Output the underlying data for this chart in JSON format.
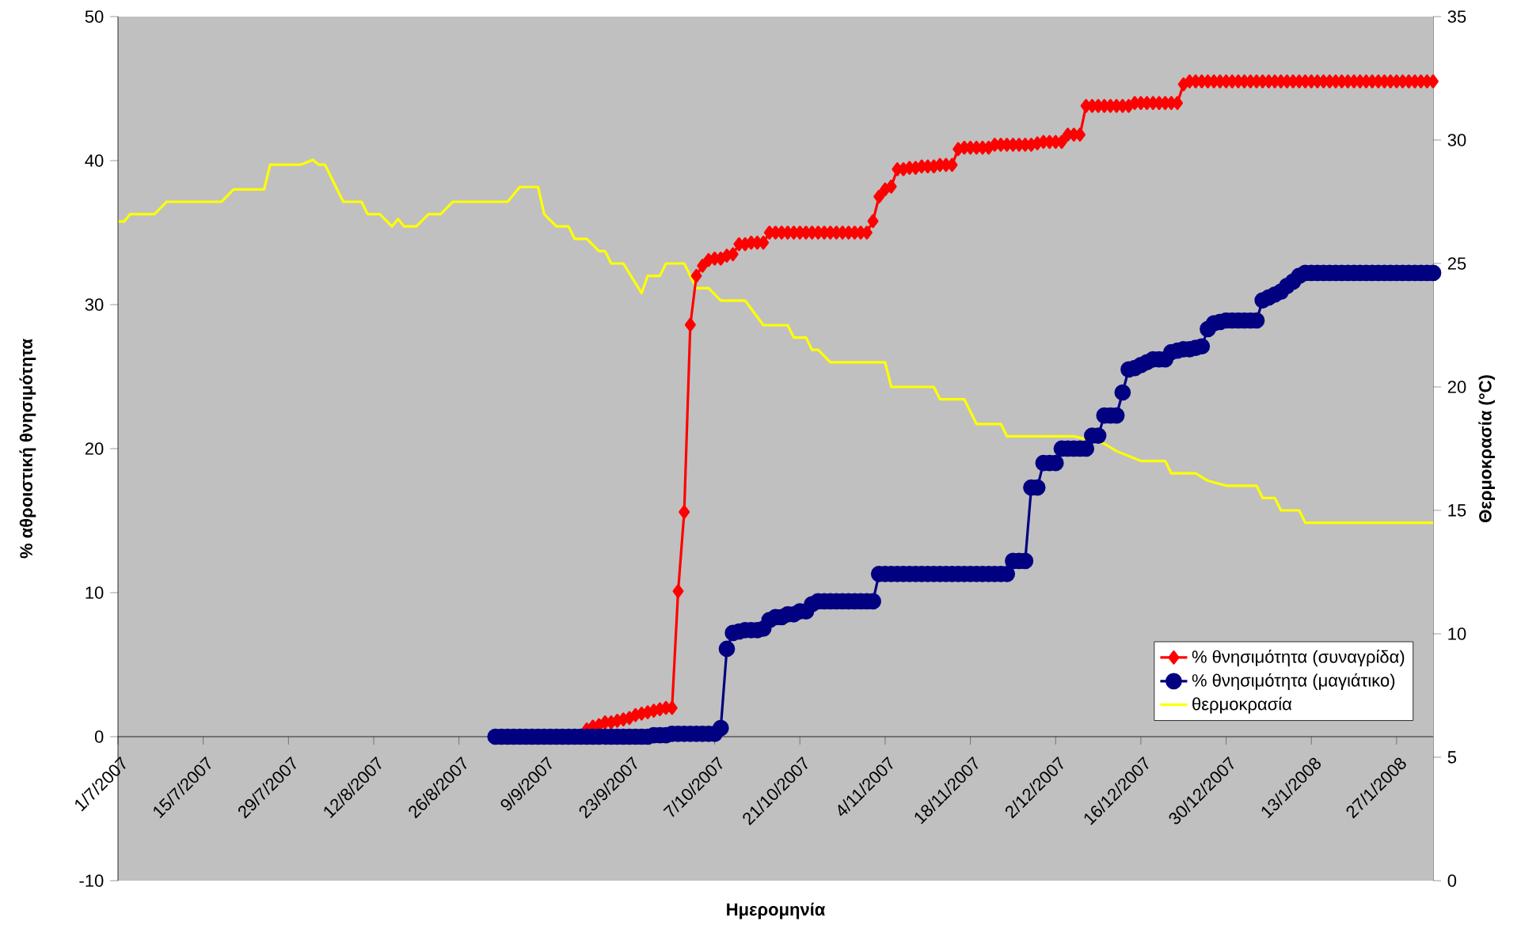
{
  "chart_data": {
    "type": "line",
    "xlabel": "Ημερομηνία",
    "ylabel": "% αθροιστική θνησιμότητα",
    "y2label": "Θερμοκρασία (°C)",
    "x": [
      "2007-09-01",
      "2007-09-02",
      "2007-09-03",
      "2007-09-04",
      "2007-09-05",
      "2007-09-06",
      "2007-09-07",
      "2007-09-08",
      "2007-09-09",
      "2007-09-10",
      "2007-09-11",
      "2007-09-12",
      "2007-09-13",
      "2007-09-14",
      "2007-09-15",
      "2007-09-16",
      "2007-09-17",
      "2007-09-18",
      "2007-09-19",
      "2007-09-20",
      "2007-09-21",
      "2007-09-22",
      "2007-09-23",
      "2007-09-24",
      "2007-09-25",
      "2007-09-26",
      "2007-09-27",
      "2007-09-28",
      "2007-09-29",
      "2007-09-30",
      "2007-10-01",
      "2007-10-02",
      "2007-10-03",
      "2007-10-04",
      "2007-10-05",
      "2007-10-06",
      "2007-10-07",
      "2007-10-08",
      "2007-10-09",
      "2007-10-10",
      "2007-10-11",
      "2007-10-12",
      "2007-10-13",
      "2007-10-14",
      "2007-10-15",
      "2007-10-16",
      "2007-10-17",
      "2007-10-18",
      "2007-10-19",
      "2007-10-20",
      "2007-10-21",
      "2007-10-22",
      "2007-10-23",
      "2007-10-24",
      "2007-10-25",
      "2007-10-26",
      "2007-10-27",
      "2007-10-28",
      "2007-10-29",
      "2007-10-30",
      "2007-10-31",
      "2007-11-01",
      "2007-11-02",
      "2007-11-03",
      "2007-11-04",
      "2007-11-05",
      "2007-11-06",
      "2007-11-07",
      "2007-11-08",
      "2007-11-09",
      "2007-11-10",
      "2007-11-11",
      "2007-11-12",
      "2007-11-13",
      "2007-11-14",
      "2007-11-15",
      "2007-11-16",
      "2007-11-17",
      "2007-11-18",
      "2007-11-19",
      "2007-11-20",
      "2007-11-21",
      "2007-11-22",
      "2007-11-23",
      "2007-11-24",
      "2007-11-25",
      "2007-11-26",
      "2007-11-27",
      "2007-11-28",
      "2007-11-29",
      "2007-11-30",
      "2007-12-01",
      "2007-12-02",
      "2007-12-03",
      "2007-12-04",
      "2007-12-05",
      "2007-12-06",
      "2007-12-07",
      "2007-12-08",
      "2007-12-09",
      "2007-12-10",
      "2007-12-11",
      "2007-12-12",
      "2007-12-13",
      "2007-12-14",
      "2007-12-15",
      "2007-12-16",
      "2007-12-17",
      "2007-12-18",
      "2007-12-19",
      "2007-12-20",
      "2007-12-21",
      "2007-12-22",
      "2007-12-23",
      "2007-12-24",
      "2007-12-25",
      "2007-12-26",
      "2007-12-27",
      "2007-12-28",
      "2007-12-29",
      "2007-12-30",
      "2007-12-31",
      "2008-01-01",
      "2008-01-02",
      "2008-01-03",
      "2008-01-04",
      "2008-01-05",
      "2008-01-06",
      "2008-01-07",
      "2008-01-08",
      "2008-01-09",
      "2008-01-10",
      "2008-01-11",
      "2008-01-12",
      "2008-01-13",
      "2008-01-14",
      "2008-01-15",
      "2008-01-16",
      "2008-01-17",
      "2008-01-18",
      "2008-01-19",
      "2008-01-20",
      "2008-01-21",
      "2008-01-22",
      "2008-01-23",
      "2008-01-24",
      "2008-01-25",
      "2008-01-26",
      "2008-01-27",
      "2008-01-28",
      "2008-01-29",
      "2008-01-30",
      "2008-01-31",
      "2008-02-01",
      "2008-02-02"
    ],
    "series": [
      {
        "name": "% θνησιμότητα (συναγρίδα)",
        "color": "#ff0000",
        "marker": "diamond",
        "values": [
          null,
          null,
          null,
          null,
          null,
          null,
          null,
          null,
          null,
          null,
          null,
          null,
          null,
          null,
          null,
          0.5,
          0.7,
          0.8,
          1.0,
          1.0,
          1.1,
          1.2,
          1.3,
          1.5,
          1.6,
          1.7,
          1.8,
          1.9,
          2.0,
          2.0,
          10.1,
          15.6,
          28.6,
          32.0,
          32.7,
          33.1,
          33.2,
          33.2,
          33.4,
          33.5,
          34.2,
          34.2,
          34.3,
          34.3,
          34.3,
          35.0,
          35.0,
          35.0,
          35.0,
          35.0,
          35.0,
          35.0,
          35.0,
          35.0,
          35.0,
          35.0,
          35.0,
          35.0,
          35.0,
          35.0,
          35.0,
          35.0,
          35.8,
          37.5,
          38.0,
          38.2,
          39.4,
          39.4,
          39.5,
          39.5,
          39.6,
          39.6,
          39.6,
          39.7,
          39.7,
          39.7,
          40.8,
          40.9,
          40.9,
          40.9,
          40.9,
          40.9,
          41.1,
          41.1,
          41.1,
          41.1,
          41.1,
          41.1,
          41.1,
          41.2,
          41.3,
          41.3,
          41.3,
          41.3,
          41.8,
          41.8,
          41.8,
          43.8,
          43.8,
          43.8,
          43.8,
          43.8,
          43.8,
          43.8,
          43.8,
          44.0,
          44.0,
          44.0,
          44.0,
          44.0,
          44.0,
          44.0,
          44.0,
          45.3,
          45.5,
          45.5,
          45.5,
          45.5,
          45.5,
          45.5,
          45.5,
          45.5,
          45.5,
          45.5,
          45.5,
          45.5,
          45.5,
          45.5,
          45.5,
          45.5,
          45.5,
          45.5,
          45.5,
          45.5,
          45.5,
          45.5,
          45.5,
          45.5,
          45.5,
          45.5,
          45.5,
          45.5,
          45.5,
          45.5,
          45.5,
          45.5,
          45.5,
          45.5,
          45.5,
          45.5,
          45.5,
          45.5,
          45.5,
          45.5,
          45.5
        ]
      },
      {
        "name": "% θνησιμότητα (μαγιάτικο)",
        "color": "#000080",
        "marker": "circle",
        "values": [
          0,
          0,
          0,
          0,
          0,
          0,
          0,
          0,
          0,
          0,
          0,
          0,
          0,
          0,
          0,
          0,
          0,
          0,
          0,
          0,
          0,
          0,
          0,
          0,
          0,
          0,
          0.1,
          0.1,
          0.1,
          0.2,
          0.2,
          0.2,
          0.2,
          0.2,
          0.2,
          0.2,
          0.2,
          0.6,
          6.1,
          7.2,
          7.3,
          7.4,
          7.4,
          7.4,
          7.5,
          8.1,
          8.3,
          8.3,
          8.5,
          8.5,
          8.7,
          8.7,
          9.2,
          9.4,
          9.4,
          9.4,
          9.4,
          9.4,
          9.4,
          9.4,
          9.4,
          9.4,
          9.4,
          11.3,
          11.3,
          11.3,
          11.3,
          11.3,
          11.3,
          11.3,
          11.3,
          11.3,
          11.3,
          11.3,
          11.3,
          11.3,
          11.3,
          11.3,
          11.3,
          11.3,
          11.3,
          11.3,
          11.3,
          11.3,
          11.3,
          12.2,
          12.2,
          12.2,
          17.3,
          17.3,
          19.0,
          19.0,
          19.0,
          20.0,
          20.0,
          20.0,
          20.0,
          20.0,
          20.9,
          20.9,
          22.3,
          22.3,
          22.3,
          23.9,
          25.5,
          25.6,
          25.8,
          26.0,
          26.2,
          26.2,
          26.2,
          26.7,
          26.8,
          26.9,
          26.9,
          27.0,
          27.1,
          28.3,
          28.7,
          28.8,
          28.9,
          28.9,
          28.9,
          28.9,
          28.9,
          28.9,
          30.3,
          30.5,
          30.7,
          30.9,
          31.3,
          31.6,
          32.0,
          32.2,
          32.2,
          32.2,
          32.2,
          32.2,
          32.2,
          32.2,
          32.2,
          32.2,
          32.2,
          32.2,
          32.2,
          32.2,
          32.2,
          32.2,
          32.2,
          32.2,
          32.2,
          32.2,
          32.2,
          32.2,
          32.2
        ]
      },
      {
        "name": "θερμοκρασία",
        "color": "#ffff00",
        "marker": "none",
        "axis": "y2",
        "x": [
          "2007-07-01",
          "2007-07-02",
          "2007-07-03",
          "2007-07-07",
          "2007-07-09",
          "2007-07-18",
          "2007-07-20",
          "2007-07-25",
          "2007-07-26",
          "2007-07-31",
          "2007-08-02",
          "2007-08-03",
          "2007-08-04",
          "2007-08-07",
          "2007-08-10",
          "2007-08-11",
          "2007-08-13",
          "2007-08-15",
          "2007-08-16",
          "2007-08-17",
          "2007-08-19",
          "2007-08-21",
          "2007-08-23",
          "2007-08-25",
          "2007-09-03",
          "2007-09-05",
          "2007-09-08",
          "2007-09-09",
          "2007-09-11",
          "2007-09-13",
          "2007-09-14",
          "2007-09-16",
          "2007-09-18",
          "2007-09-19",
          "2007-09-20",
          "2007-09-22",
          "2007-09-25",
          "2007-09-26",
          "2007-09-28",
          "2007-09-29",
          "2007-10-02",
          "2007-10-04",
          "2007-10-06",
          "2007-10-08",
          "2007-10-12",
          "2007-10-15",
          "2007-10-19",
          "2007-10-20",
          "2007-10-22",
          "2007-10-23",
          "2007-10-24",
          "2007-10-26",
          "2007-11-04",
          "2007-11-05",
          "2007-11-12",
          "2007-11-13",
          "2007-11-17",
          "2007-11-18",
          "2007-11-19",
          "2007-11-23",
          "2007-11-24",
          "2007-12-05",
          "2007-12-10",
          "2007-12-12",
          "2007-12-16",
          "2007-12-20",
          "2007-12-21",
          "2007-12-25",
          "2007-12-27",
          "2007-12-30",
          "2008-01-04",
          "2008-01-05",
          "2008-01-07",
          "2008-01-08",
          "2008-01-11",
          "2008-01-12",
          "2008-02-02"
        ],
        "values": [
          26.7,
          26.7,
          27.0,
          27.0,
          27.5,
          27.5,
          28.0,
          28.0,
          29.0,
          29.0,
          29.2,
          29.0,
          29.0,
          27.5,
          27.5,
          27.0,
          27.0,
          26.5,
          26.8,
          26.5,
          26.5,
          27.0,
          27.0,
          27.5,
          27.5,
          28.1,
          28.1,
          27.0,
          26.5,
          26.5,
          26.0,
          26.0,
          25.5,
          25.5,
          25.0,
          25.0,
          23.8,
          24.5,
          24.5,
          25.0,
          25.0,
          24.0,
          24.0,
          23.5,
          23.5,
          22.5,
          22.5,
          22.0,
          22.0,
          21.5,
          21.5,
          21.0,
          21.0,
          20.0,
          20.0,
          19.5,
          19.5,
          19.0,
          18.5,
          18.5,
          18.0,
          18.0,
          17.7,
          17.4,
          17.0,
          17.0,
          16.5,
          16.5,
          16.2,
          16.0,
          16.0,
          15.5,
          15.5,
          15.0,
          15.0,
          14.5,
          14.5
        ]
      }
    ],
    "xlim": [
      "2007-07-01",
      "2008-02-02"
    ],
    "xticks": [
      {
        "value": "2007-07-01",
        "label": "1/7/2007"
      },
      {
        "value": "2007-07-15",
        "label": "15/7/2007"
      },
      {
        "value": "2007-07-29",
        "label": "29/7/2007"
      },
      {
        "value": "2007-08-12",
        "label": "12/8/2007"
      },
      {
        "value": "2007-08-26",
        "label": "26/8/2007"
      },
      {
        "value": "2007-09-09",
        "label": "9/9/2007"
      },
      {
        "value": "2007-09-23",
        "label": "23/9/2007"
      },
      {
        "value": "2007-10-07",
        "label": "7/10/2007"
      },
      {
        "value": "2007-10-21",
        "label": "21/10/2007"
      },
      {
        "value": "2007-11-04",
        "label": "4/11/2007"
      },
      {
        "value": "2007-11-18",
        "label": "18/11/2007"
      },
      {
        "value": "2007-12-02",
        "label": "2/12/2007"
      },
      {
        "value": "2007-12-16",
        "label": "16/12/2007"
      },
      {
        "value": "2007-12-30",
        "label": "30/12/2007"
      },
      {
        "value": "2008-01-13",
        "label": "13/1/2008"
      },
      {
        "value": "2008-01-27",
        "label": "27/1/2008"
      }
    ],
    "ylim": [
      -10,
      50
    ],
    "yticks": [
      -10,
      0,
      10,
      20,
      30,
      40,
      50
    ],
    "y2lim": [
      0,
      35
    ],
    "y2ticks": [
      0,
      5,
      10,
      15,
      20,
      25,
      30,
      35
    ],
    "legend": "bottom right"
  }
}
